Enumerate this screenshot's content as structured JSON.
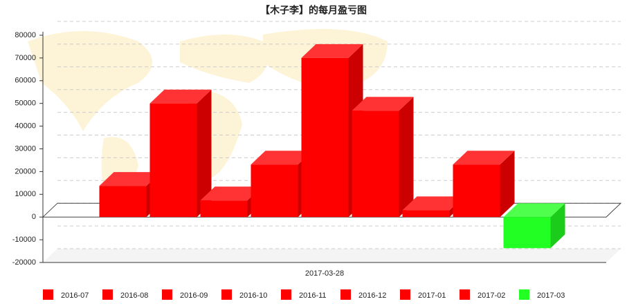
{
  "chart_data": {
    "type": "bar3d",
    "title": "【木子李】的每月盈亏图",
    "categories": [
      "2017-03-28"
    ],
    "series": [
      {
        "name": "2016-07",
        "color": "#ff0000",
        "values": [
          13700
        ]
      },
      {
        "name": "2016-08",
        "color": "#ff0000",
        "values": [
          50000
        ]
      },
      {
        "name": "2016-09",
        "color": "#ff0000",
        "values": [
          7300
        ]
      },
      {
        "name": "2016-10",
        "color": "#ff0000",
        "values": [
          23100
        ]
      },
      {
        "name": "2016-11",
        "color": "#ff0000",
        "values": [
          70000
        ]
      },
      {
        "name": "2016-12",
        "color": "#ff0000",
        "values": [
          46800
        ]
      },
      {
        "name": "2017-01",
        "color": "#ff0000",
        "values": [
          3000
        ]
      },
      {
        "name": "2017-02",
        "color": "#ff0000",
        "values": [
          23100
        ]
      },
      {
        "name": "2017-03",
        "color": "#22ff22",
        "values": [
          -13700
        ]
      }
    ],
    "ylim": [
      -20000,
      80000
    ],
    "yticks": [
      -20000,
      -10000,
      0,
      10000,
      20000,
      30000,
      40000,
      50000,
      60000,
      70000,
      80000
    ],
    "grid": true,
    "legend": "bottom"
  }
}
